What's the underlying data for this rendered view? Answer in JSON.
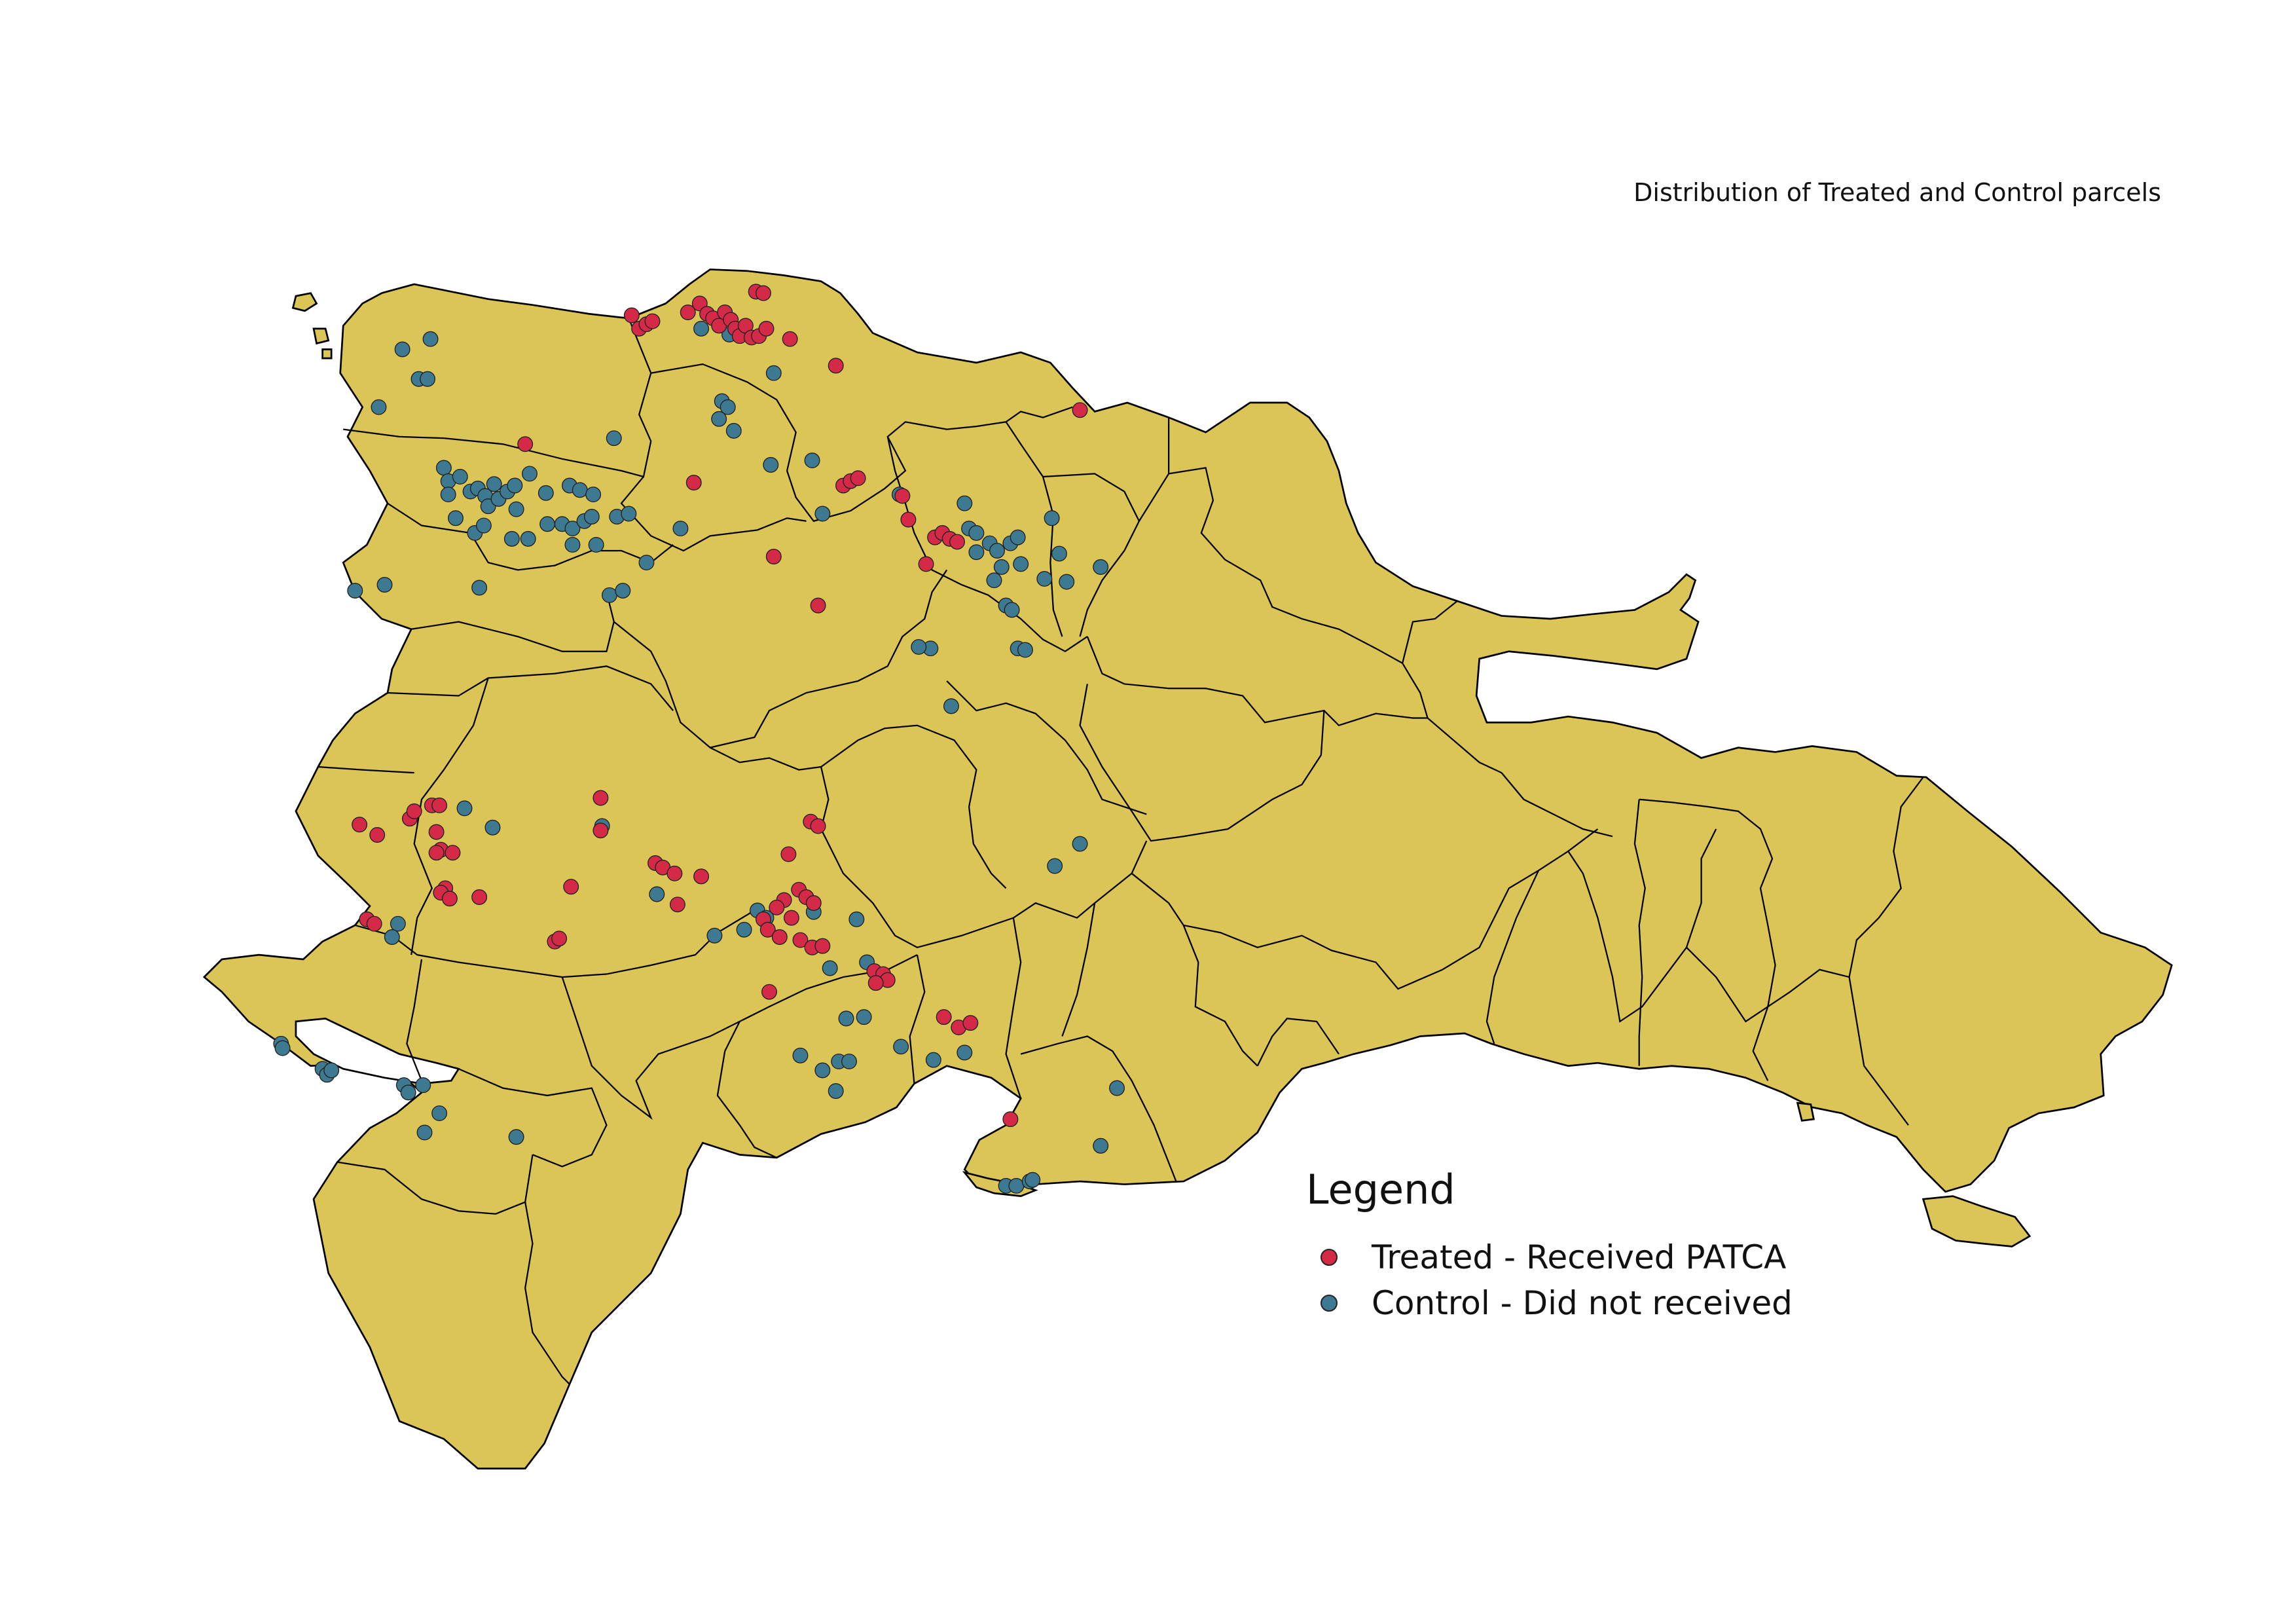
{
  "title": "Distribution of Treated and Control parcels",
  "legend": {
    "title": "Legend",
    "items": [
      {
        "label": "Treated - Received PATCA",
        "color": "#d42a48"
      },
      {
        "label": "Control - Did not received",
        "color": "#3d7990"
      }
    ]
  },
  "colors": {
    "land": "#dbc557",
    "boundary": "#000000",
    "lake": "#ffffff"
  }
}
